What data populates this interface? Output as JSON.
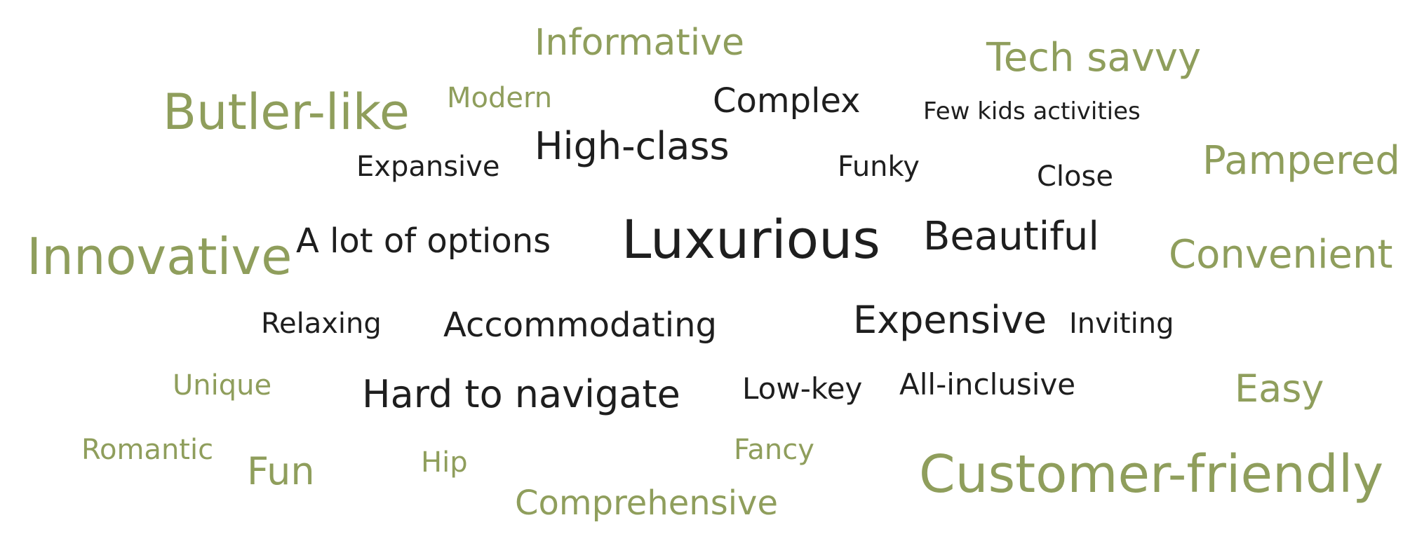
{
  "colors": {
    "green": "#8f9e5c",
    "dark": "#1e1e1e",
    "background": "#ffffff"
  },
  "words": [
    {
      "text": "Informative",
      "tone": "green"
    },
    {
      "text": "Tech savvy",
      "tone": "green"
    },
    {
      "text": "Butler-like",
      "tone": "green"
    },
    {
      "text": "Modern",
      "tone": "green"
    },
    {
      "text": "Complex",
      "tone": "dark"
    },
    {
      "text": "Few kids activities",
      "tone": "dark"
    },
    {
      "text": "High-class",
      "tone": "dark"
    },
    {
      "text": "Expansive",
      "tone": "dark"
    },
    {
      "text": "Funky",
      "tone": "dark"
    },
    {
      "text": "Close",
      "tone": "dark"
    },
    {
      "text": "Pampered",
      "tone": "green"
    },
    {
      "text": "Innovative",
      "tone": "green"
    },
    {
      "text": "A lot of options",
      "tone": "dark"
    },
    {
      "text": "Luxurious",
      "tone": "dark"
    },
    {
      "text": "Beautiful",
      "tone": "dark"
    },
    {
      "text": "Convenient",
      "tone": "green"
    },
    {
      "text": "Relaxing",
      "tone": "dark"
    },
    {
      "text": "Accommodating",
      "tone": "dark"
    },
    {
      "text": "Expensive",
      "tone": "dark"
    },
    {
      "text": "Inviting",
      "tone": "dark"
    },
    {
      "text": "Unique",
      "tone": "green"
    },
    {
      "text": "Hard to navigate",
      "tone": "dark"
    },
    {
      "text": "Low-key",
      "tone": "dark"
    },
    {
      "text": "All-inclusive",
      "tone": "dark"
    },
    {
      "text": "Easy",
      "tone": "green"
    },
    {
      "text": "Romantic",
      "tone": "green"
    },
    {
      "text": "Fun",
      "tone": "green"
    },
    {
      "text": "Hip",
      "tone": "green"
    },
    {
      "text": "Fancy",
      "tone": "green"
    },
    {
      "text": "Customer-friendly",
      "tone": "green"
    },
    {
      "text": "Comprehensive",
      "tone": "green"
    }
  ]
}
